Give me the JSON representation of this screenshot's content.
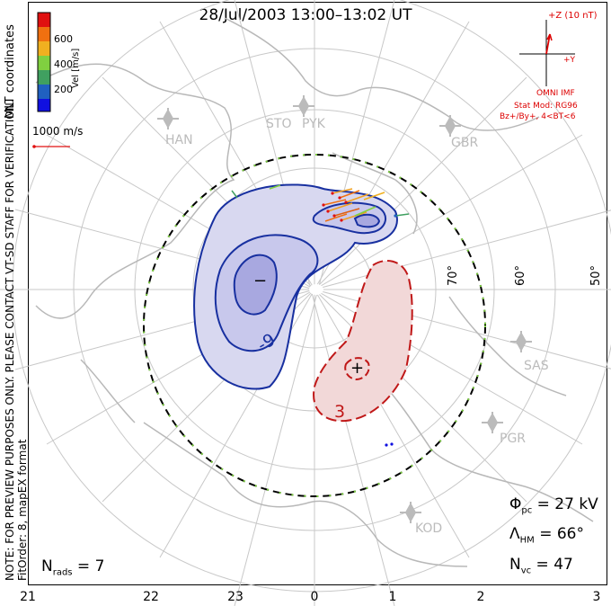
{
  "title": "28/Jul/2003 13:00–13:02 UT",
  "side_notes": {
    "coords": "MLT coordinates",
    "note": "NOTE: FOR PREVIEW PURPOSES ONLY. PLEASE CONTACT VT-SD STAFF FOR VERIFICATION.",
    "fit": "FitOrder: 8, mapEX format"
  },
  "colorbar": {
    "label": "Vel [m/s]",
    "ticks": [
      "600",
      "400",
      "200"
    ],
    "colors": [
      "#e01010",
      "#f07010",
      "#f0b020",
      "#80d040",
      "#40a060",
      "#2060c0",
      "#1010e0"
    ]
  },
  "vector_scale": "1000 m/s",
  "imf": {
    "axis_z": "+Z (10 nT)",
    "axis_y": "+Y",
    "label": "OMNI IMF",
    "model_line1": "Stat Mod: RG96",
    "model_line2": "Bz+/By+, 4<BT<6"
  },
  "stations": [
    "HAN",
    "STO",
    "PYK",
    "GBR",
    "SAS",
    "PGR",
    "KOD"
  ],
  "latitudes": [
    "70°",
    "60°",
    "50°"
  ],
  "contour_labels": [
    "-9",
    "3"
  ],
  "extrema": {
    "min": "−",
    "max": "+"
  },
  "stats": {
    "phi_pc_sym": "Φ",
    "phi_pc_sub": "pc",
    "phi_pc_val": " = 27 kV",
    "lambda_sym": "Λ",
    "lambda_sub": "HM",
    "lambda_val": " = 66°",
    "nvc_sym": "N",
    "nvc_sub": "vc",
    "nvc_val": " = 47",
    "nrads_sym": "N",
    "nrads_sub": "rads",
    "nrads_val": " = 7"
  },
  "mlt_ticks": [
    "21",
    "22",
    "23",
    "0",
    "1",
    "2",
    "3"
  ]
}
